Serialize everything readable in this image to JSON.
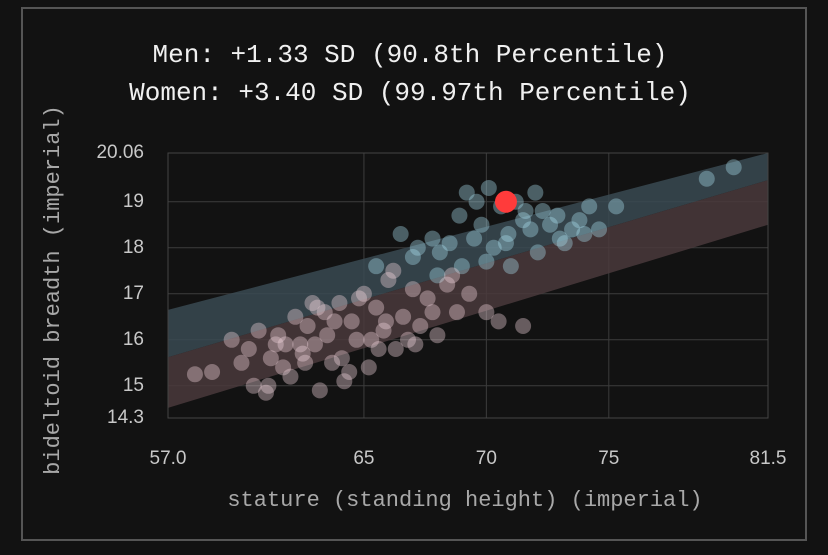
{
  "chart_data": {
    "type": "scatter",
    "title": [
      "Men: +1.33 SD (90.8th Percentile)",
      "Women: +3.40 SD (99.97th Percentile)"
    ],
    "x_label": "stature (standing height) (imperial)",
    "y_label": "bideltoid breadth (imperial)",
    "xlim": [
      57,
      81.5
    ],
    "ylim": [
      14.3,
      20.06
    ],
    "xticks": [
      {
        "value": 57,
        "label": "57.0"
      },
      65,
      70,
      75,
      81.5
    ],
    "yticks": [
      14.3,
      15,
      16,
      17,
      18,
      19,
      20.06
    ],
    "grid": true,
    "bands": [
      {
        "color": "#3a4a52",
        "x": [
          57,
          81.5
        ],
        "lower": [
          15.62,
          19.47
        ],
        "upper": [
          16.65,
          20.06
        ]
      },
      {
        "color": "#4a3a3c",
        "x": [
          57,
          81.5
        ],
        "lower": [
          14.52,
          18.5
        ],
        "upper": [
          15.62,
          19.47
        ]
      }
    ],
    "series": [
      {
        "color": "#a8dcec",
        "x": [
          66.5,
          67.2,
          67.8,
          68.1,
          68.5,
          68.9,
          69.2,
          69.5,
          69.8,
          70.1,
          70.3,
          70.6,
          70.9,
          71.2,
          71.5,
          71.8,
          72.0,
          72.3,
          72.6,
          72.9,
          73.2,
          73.5,
          73.8,
          74.2,
          74.6,
          75.3,
          79.0,
          80.1,
          69.0,
          70.0,
          71.0,
          72.1,
          68.0,
          73.0,
          69.6,
          70.8,
          71.6,
          67.0,
          74.0,
          65.5
        ],
        "values": [
          18.3,
          18.0,
          18.2,
          17.9,
          18.1,
          18.7,
          19.2,
          18.2,
          18.5,
          19.3,
          18.0,
          18.9,
          18.3,
          19.0,
          18.6,
          18.4,
          19.2,
          18.8,
          18.5,
          18.7,
          18.1,
          18.4,
          18.6,
          18.9,
          18.4,
          18.9,
          19.5,
          19.75,
          17.6,
          17.7,
          17.6,
          17.9,
          17.4,
          18.2,
          19.0,
          18.1,
          18.8,
          17.8,
          18.3,
          17.6
        ]
      },
      {
        "color": "#f2d4dc",
        "x": [
          58.1,
          58.8,
          59.6,
          60.0,
          60.3,
          60.7,
          61.0,
          61.2,
          61.5,
          61.8,
          62.0,
          62.2,
          62.5,
          62.7,
          63.0,
          63.2,
          63.4,
          63.7,
          64.0,
          64.2,
          64.5,
          64.7,
          65.0,
          65.2,
          65.5,
          65.8,
          66.0,
          66.3,
          66.6,
          67.0,
          67.3,
          67.6,
          68.0,
          68.4,
          68.8,
          69.3,
          70.0,
          70.5,
          71.5,
          61.1,
          61.7,
          62.4,
          62.9,
          63.5,
          64.1,
          64.8,
          65.3,
          65.9,
          66.8,
          67.8,
          60.5,
          61.4,
          62.6,
          63.8,
          64.4,
          65.6,
          66.2,
          67.1,
          68.6,
          63.1
        ],
        "values": [
          15.25,
          15.3,
          16.0,
          15.5,
          15.8,
          16.2,
          14.85,
          15.6,
          16.1,
          15.9,
          15.2,
          16.5,
          15.7,
          16.3,
          15.9,
          14.9,
          16.6,
          15.5,
          16.8,
          15.1,
          16.4,
          16.0,
          17.0,
          15.4,
          16.7,
          16.2,
          17.3,
          15.8,
          16.5,
          17.1,
          16.3,
          16.9,
          16.1,
          17.2,
          16.6,
          17.0,
          16.6,
          16.4,
          16.3,
          15.0,
          15.4,
          15.9,
          16.8,
          16.1,
          15.6,
          16.9,
          16.0,
          16.4,
          16.0,
          16.6,
          15.0,
          15.9,
          15.5,
          16.4,
          15.3,
          15.8,
          17.5,
          15.9,
          17.4,
          16.7
        ]
      }
    ],
    "highlight": {
      "x": 70.8,
      "y": 19.0,
      "color": "#ff3b3b"
    }
  }
}
